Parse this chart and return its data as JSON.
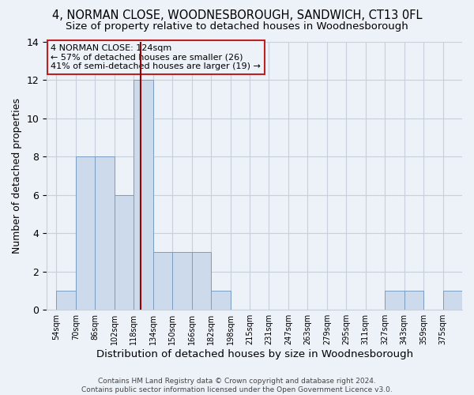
{
  "title1": "4, NORMAN CLOSE, WOODNESBOROUGH, SANDWICH, CT13 0FL",
  "title2": "Size of property relative to detached houses in Woodnesborough",
  "xlabel": "Distribution of detached houses by size in Woodnesborough",
  "ylabel": "Number of detached properties",
  "footnote": "Contains HM Land Registry data © Crown copyright and database right 2024.\nContains public sector information licensed under the Open Government Licence v3.0.",
  "bin_labels": [
    "54sqm",
    "70sqm",
    "86sqm",
    "102sqm",
    "118sqm",
    "134sqm",
    "150sqm",
    "166sqm",
    "182sqm",
    "198sqm",
    "215sqm",
    "231sqm",
    "247sqm",
    "263sqm",
    "279sqm",
    "295sqm",
    "311sqm",
    "327sqm",
    "343sqm",
    "359sqm",
    "375sqm"
  ],
  "bar_values": [
    1,
    8,
    8,
    6,
    12,
    3,
    3,
    3,
    1,
    0,
    0,
    0,
    0,
    0,
    0,
    0,
    0,
    1,
    1,
    0,
    1
  ],
  "bar_color": "#cddaeb",
  "bar_edge_color": "#7a9ec0",
  "subject_line_color": "#9b0000",
  "annotation_text": "4 NORMAN CLOSE: 124sqm\n← 57% of detached houses are smaller (26)\n41% of semi-detached houses are larger (19) →",
  "annotation_box_color": "#bb2222",
  "ylim": [
    0,
    14
  ],
  "yticks": [
    0,
    2,
    4,
    6,
    8,
    10,
    12,
    14
  ],
  "grid_color": "#c8d0dc",
  "bg_color": "#edf1f8",
  "title1_fontsize": 10.5,
  "title2_fontsize": 9.5,
  "xlabel_fontsize": 9.5,
  "ylabel_fontsize": 9.0,
  "footnote_fontsize": 6.5
}
